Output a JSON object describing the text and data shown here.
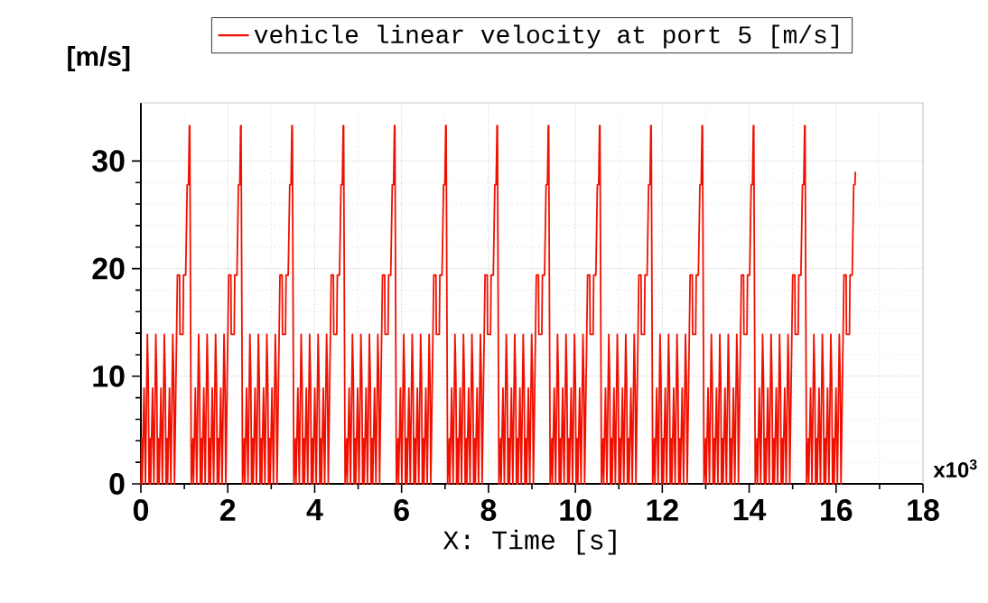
{
  "chart_data": {
    "type": "line",
    "xlabel": "X: Time [s]",
    "ylabel": "[m/s]",
    "annotations": [
      "x10$^{3}$"
    ],
    "xlim": [
      0,
      18
    ],
    "ylim": [
      0,
      35.4
    ],
    "xticks": [
      0,
      2,
      4,
      6,
      8,
      10,
      12,
      14,
      16,
      18
    ],
    "yticks": [
      0,
      10,
      20,
      30
    ],
    "grid": true,
    "legend": "top",
    "series": [
      {
        "name": "vehicle linear velocity at port 5 [m/s]",
        "color": "#f01000",
        "x": [
          0,
          0.019,
          0.03,
          0.073,
          0.105,
          0.149,
          0.17,
          0.188,
          0.214,
          0.225,
          0.268,
          0.3,
          0.344,
          0.365,
          0.383,
          0.409,
          0.42,
          0.463,
          0.495,
          0.539,
          0.56,
          0.578,
          0.604,
          0.615,
          0.658,
          0.69,
          0.734,
          0.755,
          0.773,
          0.841,
          0.891,
          0.899,
          0.968,
          0.981,
          1.031,
          1.066,
          1.096,
          1.116,
          1.126,
          1.16,
          1.199,
          1.21,
          1.253,
          1.285,
          1.329,
          1.35,
          1.368,
          1.394,
          1.405,
          1.448,
          1.48,
          1.524,
          1.545,
          1.563,
          1.589,
          1.6,
          1.643,
          1.675,
          1.719,
          1.74,
          1.758,
          1.784,
          1.795,
          1.838,
          1.87,
          1.914,
          1.935,
          1.953,
          2.021,
          2.071,
          2.079,
          2.148,
          2.161,
          2.211,
          2.246,
          2.276,
          2.296,
          2.306,
          2.34,
          2.379,
          2.39,
          2.433,
          2.465,
          2.509,
          2.53,
          2.548,
          2.574,
          2.585,
          2.628,
          2.66,
          2.704,
          2.725,
          2.743,
          2.769,
          2.78,
          2.823,
          2.855,
          2.899,
          2.92,
          2.938,
          2.964,
          2.975,
          3.018,
          3.05,
          3.094,
          3.115,
          3.133,
          3.201,
          3.251,
          3.259,
          3.328,
          3.341,
          3.391,
          3.426,
          3.456,
          3.476,
          3.486,
          3.52,
          3.559,
          3.57,
          3.613,
          3.645,
          3.689,
          3.71,
          3.728,
          3.754,
          3.765,
          3.808,
          3.84,
          3.884,
          3.905,
          3.923,
          3.949,
          3.96,
          4.003,
          4.035,
          4.079,
          4.1,
          4.118,
          4.144,
          4.155,
          4.198,
          4.23,
          4.274,
          4.295,
          4.313,
          4.381,
          4.431,
          4.439,
          4.508,
          4.521,
          4.571,
          4.606,
          4.636,
          4.656,
          4.666,
          4.7,
          4.739,
          4.75,
          4.793,
          4.825,
          4.869,
          4.89,
          4.908,
          4.934,
          4.945,
          4.988,
          5.02,
          5.064,
          5.085,
          5.103,
          5.129,
          5.14,
          5.183,
          5.215,
          5.259,
          5.28,
          5.298,
          5.324,
          5.335,
          5.378,
          5.41,
          5.454,
          5.475,
          5.493,
          5.561,
          5.611,
          5.619,
          5.688,
          5.701,
          5.751,
          5.786,
          5.816,
          5.836,
          5.846,
          5.88,
          5.919,
          5.93,
          5.973,
          6.005,
          6.049,
          6.07,
          6.088,
          6.114,
          6.125,
          6.168,
          6.2,
          6.244,
          6.265,
          6.283,
          6.309,
          6.32,
          6.363,
          6.395,
          6.439,
          6.46,
          6.478,
          6.504,
          6.515,
          6.558,
          6.59,
          6.634,
          6.655,
          6.673,
          6.741,
          6.791,
          6.799,
          6.868,
          6.881,
          6.931,
          6.966,
          6.996,
          7.016,
          7.026,
          7.06,
          7.099,
          7.11,
          7.153,
          7.185,
          7.229,
          7.25,
          7.268,
          7.294,
          7.305,
          7.348,
          7.38,
          7.424,
          7.445,
          7.463,
          7.489,
          7.5,
          7.543,
          7.575,
          7.619,
          7.64,
          7.658,
          7.684,
          7.695,
          7.738,
          7.77,
          7.814,
          7.835,
          7.853,
          7.921,
          7.971,
          7.979,
          8.048,
          8.061,
          8.111,
          8.146,
          8.176,
          8.196,
          8.206,
          8.24,
          8.279,
          8.29,
          8.333,
          8.365,
          8.409,
          8.43,
          8.448,
          8.474,
          8.485,
          8.528,
          8.56,
          8.604,
          8.625,
          8.643,
          8.669,
          8.68,
          8.723,
          8.755,
          8.799,
          8.82,
          8.838,
          8.864,
          8.875,
          8.918,
          8.95,
          8.994,
          9.015,
          9.033,
          9.101,
          9.151,
          9.159,
          9.228,
          9.241,
          9.291,
          9.326,
          9.356,
          9.376,
          9.386,
          9.42,
          9.459,
          9.47,
          9.513,
          9.545,
          9.589,
          9.61,
          9.628,
          9.654,
          9.665,
          9.708,
          9.74,
          9.784,
          9.805,
          9.823,
          9.849,
          9.86,
          9.903,
          9.935,
          9.979,
          10.0,
          10.018,
          10.044,
          10.055,
          10.098,
          10.13,
          10.174,
          10.195,
          10.213,
          10.281,
          10.331,
          10.339,
          10.408,
          10.421,
          10.471,
          10.506,
          10.536,
          10.556,
          10.566,
          10.6,
          10.639,
          10.65,
          10.693,
          10.725,
          10.769,
          10.79,
          10.808,
          10.834,
          10.845,
          10.888,
          10.92,
          10.964,
          10.985,
          11.003,
          11.029,
          11.04,
          11.083,
          11.115,
          11.159,
          11.18,
          11.198,
          11.224,
          11.235,
          11.278,
          11.31,
          11.354,
          11.375,
          11.393,
          11.461,
          11.511,
          11.519,
          11.588,
          11.601,
          11.651,
          11.686,
          11.716,
          11.736,
          11.746,
          11.78,
          11.819,
          11.83,
          11.873,
          11.905,
          11.949,
          11.97,
          11.988,
          12.014,
          12.025,
          12.068,
          12.1,
          12.144,
          12.165,
          12.183,
          12.209,
          12.22,
          12.263,
          12.295,
          12.339,
          12.36,
          12.378,
          12.404,
          12.415,
          12.458,
          12.49,
          12.534,
          12.555,
          12.573,
          12.641,
          12.691,
          12.699,
          12.768,
          12.781,
          12.831,
          12.866,
          12.896,
          12.916,
          12.926,
          12.96,
          12.999,
          13.01,
          13.053,
          13.085,
          13.129,
          13.15,
          13.168,
          13.194,
          13.205,
          13.248,
          13.28,
          13.324,
          13.345,
          13.363,
          13.389,
          13.4,
          13.443,
          13.475,
          13.519,
          13.54,
          13.558,
          13.584,
          13.595,
          13.638,
          13.67,
          13.714,
          13.735,
          13.753,
          13.821,
          13.871,
          13.879,
          13.948,
          13.961,
          14.011,
          14.046,
          14.076,
          14.096,
          14.106,
          14.14,
          14.179,
          14.19,
          14.233,
          14.265,
          14.309,
          14.33,
          14.348,
          14.374,
          14.385,
          14.428,
          14.46,
          14.504,
          14.525,
          14.543,
          14.569,
          14.58,
          14.623,
          14.655,
          14.699,
          14.72,
          14.738,
          14.764,
          14.775,
          14.818,
          14.85,
          14.894,
          14.915,
          14.933,
          15.001,
          15.051,
          15.059,
          15.128,
          15.141,
          15.191,
          15.226,
          15.256,
          15.276,
          15.286,
          15.32,
          15.359,
          15.37,
          15.413,
          15.445,
          15.489,
          15.51,
          15.528,
          15.554,
          15.565,
          15.608,
          15.64,
          15.684,
          15.705,
          15.723,
          15.749,
          15.76,
          15.803,
          15.835,
          15.879,
          15.9,
          15.918,
          15.944,
          15.955,
          15.998,
          16.03,
          16.074,
          16.095,
          16.113,
          16.181,
          16.231,
          16.239,
          16.308,
          16.321,
          16.371,
          16.406,
          16.436,
          16.443
        ],
        "values": [
          0,
          4.2,
          0,
          8.9,
          0,
          13.9,
          9.7,
          0,
          4.2,
          0,
          8.9,
          0,
          13.9,
          9.7,
          0,
          4.2,
          0,
          8.9,
          0,
          13.9,
          9.7,
          0,
          4.2,
          0,
          8.9,
          0,
          13.9,
          9.7,
          0,
          19.4,
          19.4,
          13.9,
          13.9,
          19.4,
          19.4,
          27.8,
          27.8,
          33.3,
          33.3,
          0,
          4.2,
          0,
          8.9,
          0,
          13.9,
          9.7,
          0,
          4.2,
          0,
          8.9,
          0,
          13.9,
          9.7,
          0,
          4.2,
          0,
          8.9,
          0,
          13.9,
          9.7,
          0,
          4.2,
          0,
          8.9,
          0,
          13.9,
          9.7,
          0,
          19.4,
          19.4,
          13.9,
          13.9,
          19.4,
          19.4,
          27.8,
          27.8,
          33.3,
          33.3,
          0,
          4.2,
          0,
          8.9,
          0,
          13.9,
          9.7,
          0,
          4.2,
          0,
          8.9,
          0,
          13.9,
          9.7,
          0,
          4.2,
          0,
          8.9,
          0,
          13.9,
          9.7,
          0,
          4.2,
          0,
          8.9,
          0,
          13.9,
          9.7,
          0,
          19.4,
          19.4,
          13.9,
          13.9,
          19.4,
          19.4,
          27.8,
          27.8,
          33.3,
          33.3,
          0,
          4.2,
          0,
          8.9,
          0,
          13.9,
          9.7,
          0,
          4.2,
          0,
          8.9,
          0,
          13.9,
          9.7,
          0,
          4.2,
          0,
          8.9,
          0,
          13.9,
          9.7,
          0,
          4.2,
          0,
          8.9,
          0,
          13.9,
          9.7,
          0,
          19.4,
          19.4,
          13.9,
          13.9,
          19.4,
          19.4,
          27.8,
          27.8,
          33.3,
          33.3,
          0,
          4.2,
          0,
          8.9,
          0,
          13.9,
          9.7,
          0,
          4.2,
          0,
          8.9,
          0,
          13.9,
          9.7,
          0,
          4.2,
          0,
          8.9,
          0,
          13.9,
          9.7,
          0,
          4.2,
          0,
          8.9,
          0,
          13.9,
          9.7,
          0,
          19.4,
          19.4,
          13.9,
          13.9,
          19.4,
          19.4,
          27.8,
          27.8,
          33.3,
          33.3,
          0,
          4.2,
          0,
          8.9,
          0,
          13.9,
          9.7,
          0,
          4.2,
          0,
          8.9,
          0,
          13.9,
          9.7,
          0,
          4.2,
          0,
          8.9,
          0,
          13.9,
          9.7,
          0,
          4.2,
          0,
          8.9,
          0,
          13.9,
          9.7,
          0,
          19.4,
          19.4,
          13.9,
          13.9,
          19.4,
          19.4,
          27.8,
          27.8,
          33.3,
          33.3,
          0,
          4.2,
          0,
          8.9,
          0,
          13.9,
          9.7,
          0,
          4.2,
          0,
          8.9,
          0,
          13.9,
          9.7,
          0,
          4.2,
          0,
          8.9,
          0,
          13.9,
          9.7,
          0,
          4.2,
          0,
          8.9,
          0,
          13.9,
          9.7,
          0,
          19.4,
          19.4,
          13.9,
          13.9,
          19.4,
          19.4,
          27.8,
          27.8,
          33.3,
          33.3,
          0,
          4.2,
          0,
          8.9,
          0,
          13.9,
          9.7,
          0,
          4.2,
          0,
          8.9,
          0,
          13.9,
          9.7,
          0,
          4.2,
          0,
          8.9,
          0,
          13.9,
          9.7,
          0,
          4.2,
          0,
          8.9,
          0,
          13.9,
          9.7,
          0,
          19.4,
          19.4,
          13.9,
          13.9,
          19.4,
          19.4,
          27.8,
          27.8,
          33.3,
          33.3,
          0,
          4.2,
          0,
          8.9,
          0,
          13.9,
          9.7,
          0,
          4.2,
          0,
          8.9,
          0,
          13.9,
          9.7,
          0,
          4.2,
          0,
          8.9,
          0,
          13.9,
          9.7,
          0,
          4.2,
          0,
          8.9,
          0,
          13.9,
          9.7,
          0,
          19.4,
          19.4,
          13.9,
          13.9,
          19.4,
          19.4,
          27.8,
          27.8,
          33.3,
          33.3,
          0,
          4.2,
          0,
          8.9,
          0,
          13.9,
          9.7,
          0,
          4.2,
          0,
          8.9,
          0,
          13.9,
          9.7,
          0,
          4.2,
          0,
          8.9,
          0,
          13.9,
          9.7,
          0,
          4.2,
          0,
          8.9,
          0,
          13.9,
          9.7,
          0,
          19.4,
          19.4,
          13.9,
          13.9,
          19.4,
          19.4,
          27.8,
          27.8,
          33.3,
          33.3,
          0,
          4.2,
          0,
          8.9,
          0,
          13.9,
          9.7,
          0,
          4.2,
          0,
          8.9,
          0,
          13.9,
          9.7,
          0,
          4.2,
          0,
          8.9,
          0,
          13.9,
          9.7,
          0,
          4.2,
          0,
          8.9,
          0,
          13.9,
          9.7,
          0,
          19.4,
          19.4,
          13.9,
          13.9,
          19.4,
          19.4,
          27.8,
          27.8,
          33.3,
          33.3,
          0,
          4.2,
          0,
          8.9,
          0,
          13.9,
          9.7,
          0,
          4.2,
          0,
          8.9,
          0,
          13.9,
          9.7,
          0,
          4.2,
          0,
          8.9,
          0,
          13.9,
          9.7,
          0,
          4.2,
          0,
          8.9,
          0,
          13.9,
          9.7,
          0,
          19.4,
          19.4,
          13.9,
          13.9,
          19.4,
          19.4,
          27.8,
          27.8,
          33.3,
          33.3,
          0,
          4.2,
          0,
          8.9,
          0,
          13.9,
          9.7,
          0,
          4.2,
          0,
          8.9,
          0,
          13.9,
          9.7,
          0,
          4.2,
          0,
          8.9,
          0,
          13.9,
          9.7,
          0,
          4.2,
          0,
          8.9,
          0,
          13.9,
          9.7,
          0,
          19.4,
          19.4,
          13.9,
          13.9,
          19.4,
          19.4,
          27.8,
          27.8,
          33.3,
          33.3,
          0,
          4.2,
          0,
          8.9,
          0,
          13.9,
          9.7,
          0,
          4.2,
          0,
          8.9,
          0,
          13.9,
          9.7,
          0,
          4.2,
          0,
          8.9,
          0,
          13.9,
          9.7,
          0,
          4.2,
          0,
          8.9,
          0,
          13.9,
          9.7,
          0,
          19.4,
          19.4,
          13.9,
          13.9,
          19.4,
          19.4,
          27.8,
          27.8,
          29.0
        ]
      }
    ]
  }
}
